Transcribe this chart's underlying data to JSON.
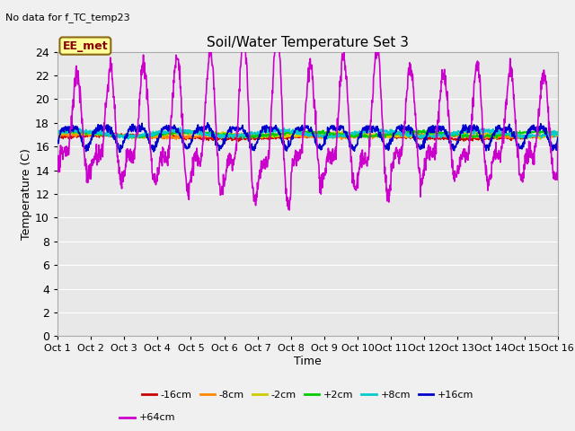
{
  "title": "Soil/Water Temperature Set 3",
  "no_data_text": "No data for f_TC_temp23",
  "xlabel": "Time",
  "ylabel": "Temperature (C)",
  "xlim": [
    0,
    15
  ],
  "ylim": [
    0,
    24
  ],
  "yticks": [
    0,
    2,
    4,
    6,
    8,
    10,
    12,
    14,
    16,
    18,
    20,
    22,
    24
  ],
  "xtick_labels": [
    "Oct 1",
    "Oct 2",
    "Oct 3",
    "Oct 4",
    "Oct 5",
    "Oct 6",
    "Oct 7",
    "Oct 8",
    "Oct 9",
    "Oct 10",
    "Oct 11",
    "Oct 12",
    "Oct 13",
    "Oct 14",
    "Oct 15",
    "Oct 16"
  ],
  "annotation_box": "EE_met",
  "series_colors": {
    "-16cm": "#cc0000",
    "-8cm": "#ff8800",
    "-2cm": "#cccc00",
    "+2cm": "#00cc00",
    "+8cm": "#00cccc",
    "+16cm": "#0000cc",
    "+64cm": "#cc00cc"
  },
  "fig_bg_color": "#f0f0f0",
  "plot_bg_color": "#e8e8e8",
  "grid_color": "#ffffff",
  "figsize": [
    6.4,
    4.8
  ],
  "dpi": 100
}
